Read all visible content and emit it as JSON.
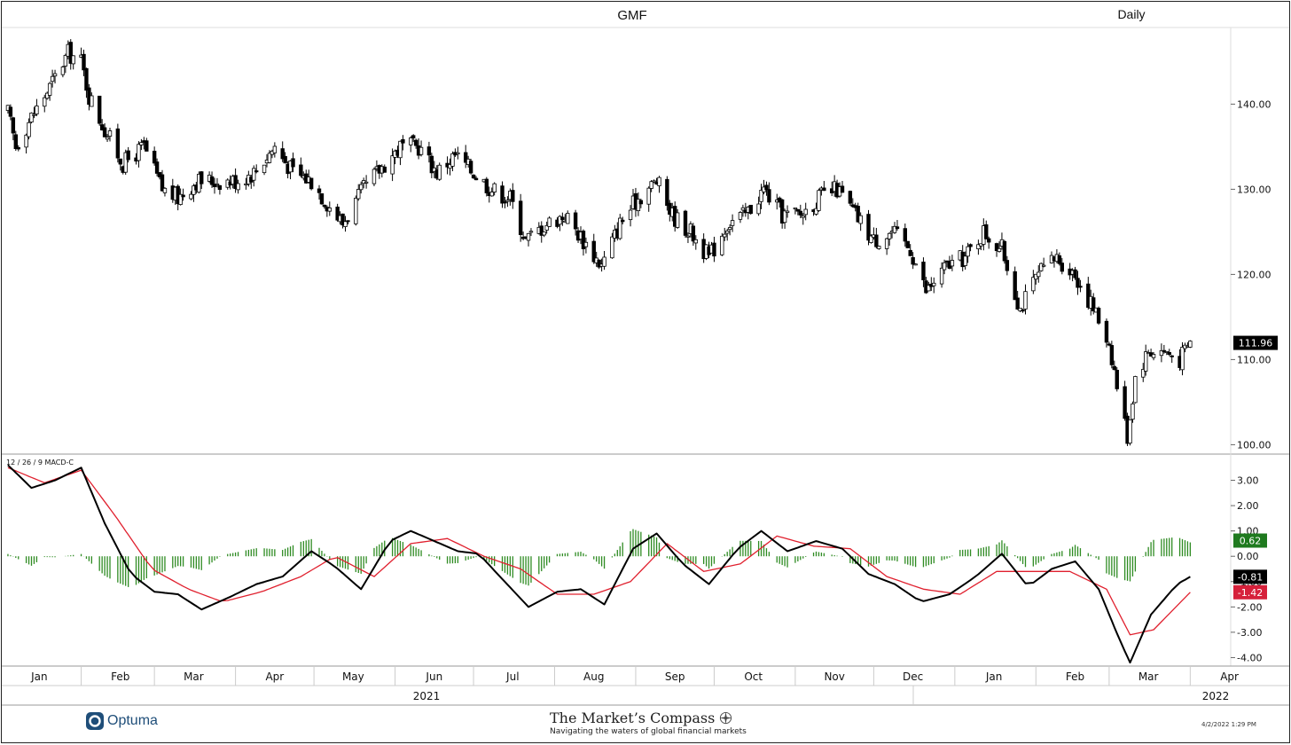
{
  "header": {
    "ticker": "GMF",
    "interval": "Daily"
  },
  "footer": {
    "brand": "Optuma",
    "publisher": "The Market’s Compass",
    "tagline": "Navigating the waters of global financial markets",
    "timestamp": "4/2/2022 1:29 PM"
  },
  "colors": {
    "macd_line": "#000000",
    "signal_line": "#e0202e",
    "histogram": "#2e8b22",
    "last_price_bg": "#000000",
    "hist_badge_bg": "#1f7a1f",
    "signal_badge_bg": "#d6203a",
    "brand": "#1f4e79"
  },
  "chart_data": [
    {
      "type": "candlestick",
      "title": "GMF",
      "subtitle": "Daily",
      "ylim": [
        99,
        149
      ],
      "y_ticks": [
        "100.00",
        "110.00",
        "120.00",
        "130.00",
        "140.00"
      ],
      "last_value": "111.96",
      "x_month_labels": [
        "Jan",
        "Feb",
        "Mar",
        "Apr",
        "May",
        "Jun",
        "Jul",
        "Aug",
        "Sep",
        "Oct",
        "Nov",
        "Dec",
        "Jan",
        "Feb",
        "Mar",
        "Apr"
      ],
      "x_year_labels": [
        "2021",
        "2022"
      ],
      "approx_close_path": [
        {
          "date": "2021-01-04",
          "close": 139
        },
        {
          "date": "2021-01-07",
          "close": 135
        },
        {
          "date": "2021-01-12",
          "close": 138
        },
        {
          "date": "2021-01-20",
          "close": 142
        },
        {
          "date": "2021-01-27",
          "close": 146
        },
        {
          "date": "2021-02-01",
          "close": 145
        },
        {
          "date": "2021-02-04",
          "close": 141
        },
        {
          "date": "2021-02-10",
          "close": 137
        },
        {
          "date": "2021-02-17",
          "close": 133
        },
        {
          "date": "2021-02-25",
          "close": 135
        },
        {
          "date": "2021-03-04",
          "close": 130
        },
        {
          "date": "2021-03-10",
          "close": 129
        },
        {
          "date": "2021-03-17",
          "close": 131
        },
        {
          "date": "2021-03-25",
          "close": 131
        },
        {
          "date": "2021-04-01",
          "close": 131
        },
        {
          "date": "2021-04-08",
          "close": 132
        },
        {
          "date": "2021-04-16",
          "close": 135
        },
        {
          "date": "2021-04-23",
          "close": 132
        },
        {
          "date": "2021-04-30",
          "close": 131
        },
        {
          "date": "2021-05-07",
          "close": 128
        },
        {
          "date": "2021-05-12",
          "close": 126
        },
        {
          "date": "2021-05-20",
          "close": 130
        },
        {
          "date": "2021-05-28",
          "close": 133
        },
        {
          "date": "2021-06-03",
          "close": 135
        },
        {
          "date": "2021-06-10",
          "close": 135
        },
        {
          "date": "2021-06-17",
          "close": 132
        },
        {
          "date": "2021-06-24",
          "close": 134
        },
        {
          "date": "2021-07-01",
          "close": 132
        },
        {
          "date": "2021-07-08",
          "close": 130
        },
        {
          "date": "2021-07-15",
          "close": 129
        },
        {
          "date": "2021-07-21",
          "close": 124
        },
        {
          "date": "2021-07-29",
          "close": 126
        },
        {
          "date": "2021-08-05",
          "close": 127
        },
        {
          "date": "2021-08-12",
          "close": 124
        },
        {
          "date": "2021-08-19",
          "close": 121
        },
        {
          "date": "2021-08-26",
          "close": 126
        },
        {
          "date": "2021-09-02",
          "close": 129
        },
        {
          "date": "2021-09-09",
          "close": 131
        },
        {
          "date": "2021-09-15",
          "close": 127
        },
        {
          "date": "2021-09-22",
          "close": 125
        },
        {
          "date": "2021-09-29",
          "close": 122
        },
        {
          "date": "2021-10-06",
          "close": 126
        },
        {
          "date": "2021-10-13",
          "close": 127
        },
        {
          "date": "2021-10-20",
          "close": 130
        },
        {
          "date": "2021-10-27",
          "close": 127
        },
        {
          "date": "2021-11-03",
          "close": 127
        },
        {
          "date": "2021-11-10",
          "close": 129
        },
        {
          "date": "2021-11-17",
          "close": 130
        },
        {
          "date": "2021-11-24",
          "close": 127
        },
        {
          "date": "2021-12-01",
          "close": 124
        },
        {
          "date": "2021-12-08",
          "close": 125
        },
        {
          "date": "2021-12-15",
          "close": 123
        },
        {
          "date": "2021-12-21",
          "close": 118
        },
        {
          "date": "2021-12-29",
          "close": 121
        },
        {
          "date": "2022-01-05",
          "close": 122
        },
        {
          "date": "2022-01-12",
          "close": 125
        },
        {
          "date": "2022-01-19",
          "close": 123
        },
        {
          "date": "2022-01-26",
          "close": 116
        },
        {
          "date": "2022-02-02",
          "close": 120
        },
        {
          "date": "2022-02-09",
          "close": 122
        },
        {
          "date": "2022-02-16",
          "close": 120
        },
        {
          "date": "2022-02-23",
          "close": 116
        },
        {
          "date": "2022-03-01",
          "close": 112
        },
        {
          "date": "2022-03-04",
          "close": 107
        },
        {
          "date": "2022-03-08",
          "close": 101
        },
        {
          "date": "2022-03-11",
          "close": 108
        },
        {
          "date": "2022-03-16",
          "close": 111
        },
        {
          "date": "2022-03-22",
          "close": 111
        },
        {
          "date": "2022-03-28",
          "close": 110
        },
        {
          "date": "2022-04-01",
          "close": 111.96
        }
      ]
    },
    {
      "type": "line",
      "title": "12 / 26 / 9 MACD-C",
      "ylim": [
        -4.3,
        4.0
      ],
      "y_ticks": [
        "3.00",
        "2.00",
        "1.00",
        "0.00",
        "-1.00",
        "-2.00",
        "-3.00",
        "-4.00"
      ],
      "last_values": {
        "histogram": "0.62",
        "macd": "-0.81",
        "signal": "-1.42"
      },
      "macd": [
        {
          "date": "2021-01-04",
          "value": 3.6
        },
        {
          "date": "2021-01-13",
          "value": 2.7
        },
        {
          "date": "2021-01-22",
          "value": 3.0
        },
        {
          "date": "2021-02-01",
          "value": 3.5
        },
        {
          "date": "2021-02-10",
          "value": 1.3
        },
        {
          "date": "2021-02-20",
          "value": -0.7
        },
        {
          "date": "2021-03-01",
          "value": -1.4
        },
        {
          "date": "2021-03-10",
          "value": -1.5
        },
        {
          "date": "2021-03-19",
          "value": -2.1
        },
        {
          "date": "2021-03-30",
          "value": -1.6
        },
        {
          "date": "2021-04-09",
          "value": -1.1
        },
        {
          "date": "2021-04-19",
          "value": -0.8
        },
        {
          "date": "2021-04-30",
          "value": 0.2
        },
        {
          "date": "2021-05-09",
          "value": -0.4
        },
        {
          "date": "2021-05-19",
          "value": -1.3
        },
        {
          "date": "2021-05-30",
          "value": 0.6
        },
        {
          "date": "2021-06-07",
          "value": 1.0
        },
        {
          "date": "2021-06-16",
          "value": 0.6
        },
        {
          "date": "2021-06-25",
          "value": 0.2
        },
        {
          "date": "2021-07-03",
          "value": 0.1
        },
        {
          "date": "2021-07-12",
          "value": -0.9
        },
        {
          "date": "2021-07-22",
          "value": -2.0
        },
        {
          "date": "2021-08-02",
          "value": -1.4
        },
        {
          "date": "2021-08-11",
          "value": -1.3
        },
        {
          "date": "2021-08-20",
          "value": -1.9
        },
        {
          "date": "2021-08-31",
          "value": 0.3
        },
        {
          "date": "2021-09-09",
          "value": 0.9
        },
        {
          "date": "2021-09-19",
          "value": -0.3
        },
        {
          "date": "2021-09-29",
          "value": -1.1
        },
        {
          "date": "2021-10-10",
          "value": 0.3
        },
        {
          "date": "2021-10-19",
          "value": 1.0
        },
        {
          "date": "2021-10-29",
          "value": 0.2
        },
        {
          "date": "2021-11-09",
          "value": 0.6
        },
        {
          "date": "2021-11-19",
          "value": 0.3
        },
        {
          "date": "2021-11-29",
          "value": -0.7
        },
        {
          "date": "2021-12-09",
          "value": -1.1
        },
        {
          "date": "2021-12-19",
          "value": -1.8
        },
        {
          "date": "2021-12-30",
          "value": -1.5
        },
        {
          "date": "2022-01-09",
          "value": -0.8
        },
        {
          "date": "2022-01-19",
          "value": 0.1
        },
        {
          "date": "2022-01-29",
          "value": -1.2
        },
        {
          "date": "2022-02-07",
          "value": -0.5
        },
        {
          "date": "2022-02-16",
          "value": -0.2
        },
        {
          "date": "2022-02-25",
          "value": -1.3
        },
        {
          "date": "2022-03-05",
          "value": -3.3
        },
        {
          "date": "2022-03-09",
          "value": -4.2
        },
        {
          "date": "2022-03-17",
          "value": -2.3
        },
        {
          "date": "2022-03-27",
          "value": -1.1
        },
        {
          "date": "2022-04-01",
          "value": -0.81
        }
      ],
      "signal": [
        {
          "date": "2021-01-04",
          "value": 3.5
        },
        {
          "date": "2021-01-18",
          "value": 2.9
        },
        {
          "date": "2021-02-01",
          "value": 3.4
        },
        {
          "date": "2021-02-14",
          "value": 1.6
        },
        {
          "date": "2021-02-28",
          "value": -0.5
        },
        {
          "date": "2021-03-14",
          "value": -1.3
        },
        {
          "date": "2021-03-27",
          "value": -1.8
        },
        {
          "date": "2021-04-11",
          "value": -1.4
        },
        {
          "date": "2021-04-26",
          "value": -0.8
        },
        {
          "date": "2021-05-09",
          "value": 0.0
        },
        {
          "date": "2021-05-24",
          "value": -0.8
        },
        {
          "date": "2021-06-07",
          "value": 0.5
        },
        {
          "date": "2021-06-21",
          "value": 0.7
        },
        {
          "date": "2021-07-05",
          "value": 0.0
        },
        {
          "date": "2021-07-19",
          "value": -0.5
        },
        {
          "date": "2021-08-02",
          "value": -1.5
        },
        {
          "date": "2021-08-16",
          "value": -1.5
        },
        {
          "date": "2021-08-30",
          "value": -1.0
        },
        {
          "date": "2021-09-13",
          "value": 0.5
        },
        {
          "date": "2021-09-27",
          "value": -0.6
        },
        {
          "date": "2021-10-11",
          "value": -0.3
        },
        {
          "date": "2021-10-25",
          "value": 0.8
        },
        {
          "date": "2021-11-08",
          "value": 0.4
        },
        {
          "date": "2021-11-22",
          "value": 0.3
        },
        {
          "date": "2021-12-06",
          "value": -0.8
        },
        {
          "date": "2021-12-20",
          "value": -1.3
        },
        {
          "date": "2022-01-03",
          "value": -1.5
        },
        {
          "date": "2022-01-17",
          "value": -0.6
        },
        {
          "date": "2022-01-31",
          "value": -0.6
        },
        {
          "date": "2022-02-14",
          "value": -0.6
        },
        {
          "date": "2022-02-28",
          "value": -1.3
        },
        {
          "date": "2022-03-09",
          "value": -3.1
        },
        {
          "date": "2022-03-18",
          "value": -2.9
        },
        {
          "date": "2022-04-01",
          "value": -1.42
        }
      ]
    }
  ]
}
